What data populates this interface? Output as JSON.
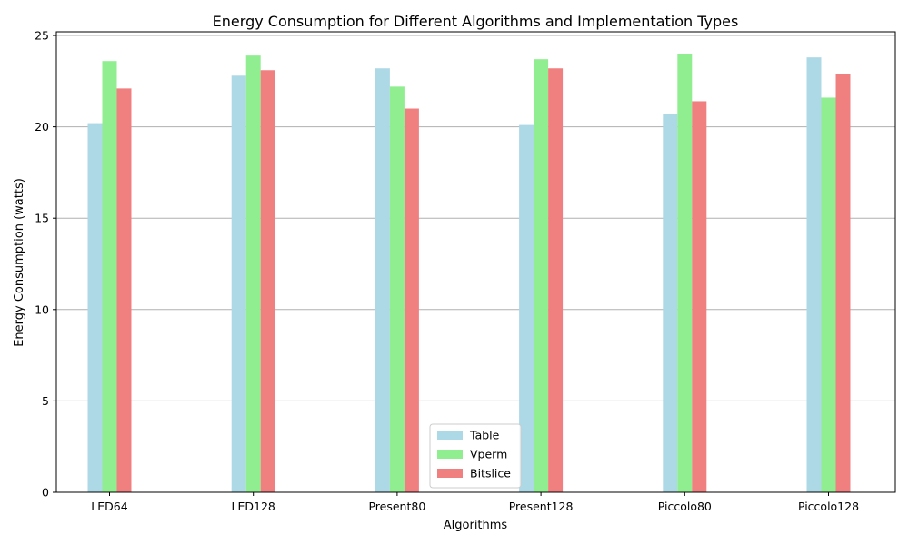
{
  "chart_data": {
    "type": "bar",
    "title": "Energy Consumption for Different Algorithms and Implementation Types",
    "xlabel": "Algorithms",
    "ylabel": "Energy Consumption (watts)",
    "categories": [
      "LED64",
      "LED128",
      "Present80",
      "Present128",
      "Piccolo80",
      "Piccolo128"
    ],
    "series": [
      {
        "name": "Table",
        "color": "#add8e6",
        "values": [
          20.2,
          22.8,
          23.2,
          20.1,
          20.7,
          23.8
        ]
      },
      {
        "name": "Vperm",
        "color": "#90ee90",
        "values": [
          23.6,
          23.9,
          22.2,
          23.7,
          24.0,
          21.6
        ]
      },
      {
        "name": "Bitslice",
        "color": "#f08080",
        "values": [
          22.1,
          23.1,
          21.0,
          23.2,
          21.4,
          22.9
        ]
      }
    ],
    "ylim": [
      0,
      25.2
    ],
    "yticks": [
      0,
      5,
      10,
      15,
      20,
      25
    ],
    "grid": "y",
    "legend_position": "lower-center"
  }
}
